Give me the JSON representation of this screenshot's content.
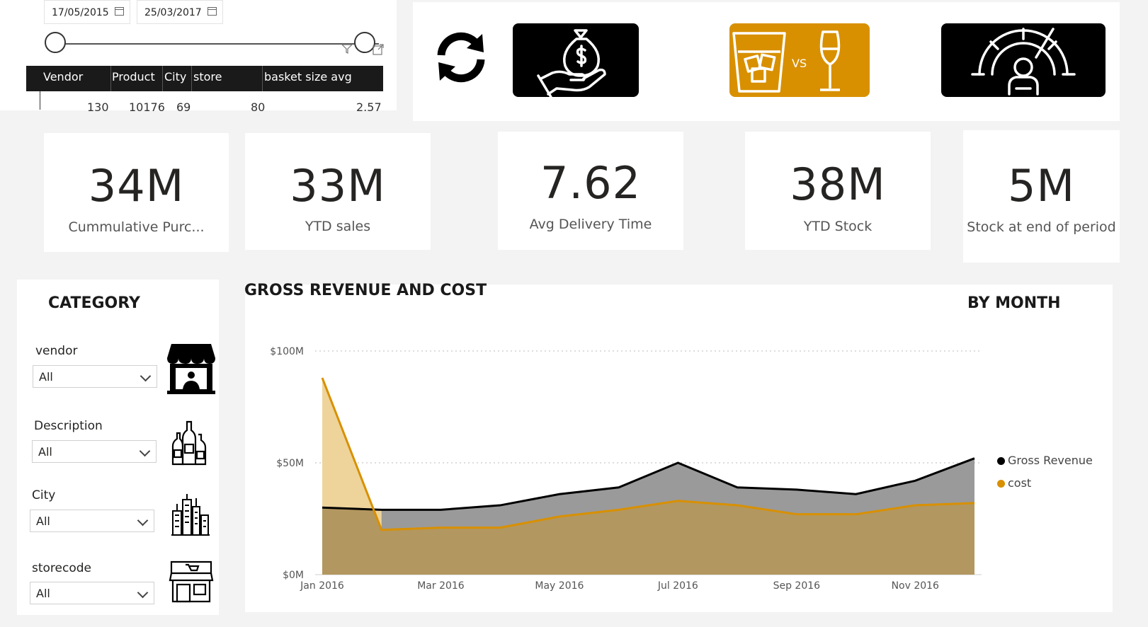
{
  "date_slicer": {
    "start": "17/05/2015",
    "end": "25/03/2017"
  },
  "summary_table": {
    "headers": [
      "Vendor",
      "Product",
      "City",
      "store",
      "basket size avg"
    ],
    "row": [
      "130",
      "10176",
      "69",
      "80",
      "2.57"
    ]
  },
  "kpis": [
    {
      "value": "34M",
      "label": "Cummulative Purc..."
    },
    {
      "value": "33M",
      "label": "YTD sales"
    },
    {
      "value": "7.62",
      "label": "Avg Delivery Time"
    },
    {
      "value": "38M",
      "label": "YTD Stock"
    },
    {
      "value": "5M",
      "label": "Stock at end of period"
    }
  ],
  "category": {
    "title": "CATEGORY",
    "slicers": [
      {
        "label": "vendor",
        "value": "All"
      },
      {
        "label": "Description",
        "value": "All"
      },
      {
        "label": "City",
        "value": "All"
      },
      {
        "label": "storecode",
        "value": "All"
      }
    ]
  },
  "nav_tiles": {
    "vs_label": "VS"
  },
  "colors": {
    "gross_revenue": "#000000",
    "cost": "#d89000",
    "revenue_fill": "#9a9a9a",
    "cost_fill": "#b39760",
    "cost_spike_fill": "#eed49b",
    "gold_tile": "#d89000"
  },
  "chart_data": {
    "type": "area",
    "title": "GROSS REVENUE AND COST",
    "subtitle": "BY MONTH",
    "x": [
      "Jan 2016",
      "Feb 2016",
      "Mar 2016",
      "Apr 2016",
      "May 2016",
      "Jun 2016",
      "Jul 2016",
      "Aug 2016",
      "Sep 2016",
      "Oct 2016",
      "Nov 2016",
      "Dec 2016"
    ],
    "x_tick_labels": [
      "Jan 2016",
      "Mar 2016",
      "May 2016",
      "Jul 2016",
      "Sep 2016",
      "Nov 2016"
    ],
    "y_tick_labels": [
      "$0M",
      "$50M",
      "$100M"
    ],
    "ylim": [
      0,
      100
    ],
    "series": [
      {
        "name": "Gross Revenue",
        "values": [
          30,
          29,
          29,
          31,
          36,
          39,
          50,
          39,
          38,
          36,
          42,
          52
        ]
      },
      {
        "name": "cost",
        "values": [
          88,
          20,
          21,
          21,
          26,
          29,
          33,
          31,
          27,
          27,
          31,
          32
        ]
      }
    ],
    "legend": "right",
    "grid": true
  }
}
